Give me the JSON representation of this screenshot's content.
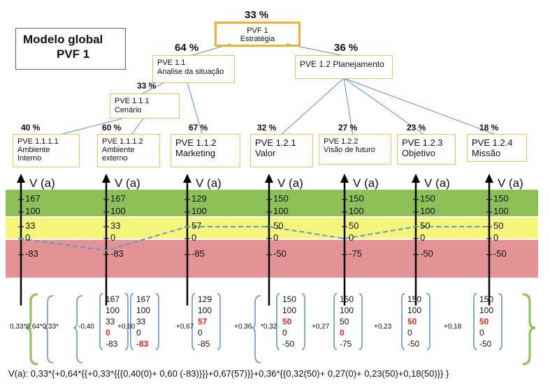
{
  "title": [
    "Modelo global",
    "PVF 1"
  ],
  "root": {
    "pct": "33 %",
    "lines": [
      "PVF 1",
      "Estratégia"
    ]
  },
  "level1": [
    {
      "pct": "64 %",
      "lines": [
        "PVE 1.1",
        "Analise da situação"
      ]
    },
    {
      "pct": "36 %",
      "lines": [
        "PVE 1.2 Planejamento"
      ]
    }
  ],
  "cenario": {
    "pct": "33 %",
    "lines": [
      "PVE 1.1.1",
      "Cenário"
    ]
  },
  "leaves": [
    {
      "pct": "40 %",
      "lines": [
        "PVE 1.1.1.1",
        "Ambiente",
        "Interno"
      ]
    },
    {
      "pct": "60 %",
      "lines": [
        "PVE 1.1.1.2",
        "Ambiente",
        "externo"
      ]
    },
    {
      "pct": "67 %",
      "lines": [
        "PVE 1.1.2",
        "Marketing"
      ]
    },
    {
      "pct": "32 %",
      "lines": [
        "PVE 1.2.1",
        "Valor"
      ]
    },
    {
      "pct": "27 %",
      "lines": [
        "PVE 1.2.2",
        "Visão de futuro"
      ]
    },
    {
      "pct": "23 %",
      "lines": [
        "PVE 1.2.3",
        "Objetivo"
      ]
    },
    {
      "pct": "18 %",
      "lines": [
        "PVE 1.2.4",
        "Missão"
      ]
    }
  ],
  "axis_label": "V (a)",
  "scales": [
    [
      "167",
      "100",
      "33",
      "0",
      "-83"
    ],
    [
      "167",
      "100",
      "33",
      "0",
      "-83"
    ],
    [
      "129",
      "100",
      "57",
      "0",
      "-85"
    ],
    [
      "150",
      "100",
      "50",
      "0",
      "-50"
    ],
    [
      "150",
      "100",
      "50",
      "0",
      "-75"
    ],
    [
      "150",
      "100",
      "50",
      "0",
      "-50"
    ],
    [
      "150",
      "100",
      "50",
      "0",
      "-50"
    ]
  ],
  "chosen_level": [
    "0",
    "-83",
    "57",
    "50",
    "0",
    "50",
    "50"
  ],
  "matrices": [
    {
      "values": [
        "167",
        "100",
        "33",
        "0",
        "-83"
      ],
      "red_index": 3
    },
    {
      "values": [
        "167",
        "100",
        "33",
        "0",
        "-83"
      ],
      "red_index": 4
    },
    {
      "values": [
        "129",
        "100",
        "57",
        "0",
        "-85"
      ],
      "red_index": 2
    },
    {
      "values": [
        "150",
        "100",
        "50",
        "0",
        "-50"
      ],
      "red_index": 2
    },
    {
      "values": [
        "150",
        "100",
        "50",
        "0",
        "-75"
      ],
      "red_index": 3
    },
    {
      "values": [
        "150",
        "100",
        "50",
        "0",
        "-50"
      ],
      "red_index": 2
    },
    {
      "values": [
        "150",
        "100",
        "50",
        "0",
        "-50"
      ],
      "red_index": 2
    }
  ],
  "coefficients": [
    "0,33*0,64*0,33*",
    "-0,40",
    "+0,60",
    "+0,67",
    "+0,36",
    "*0,32",
    "+0,27",
    "+0,23",
    "+0,18"
  ],
  "formula": "V(a): 0,33*{+0,64*{{+0,33*{{{0,40(0)+ 0,60 (-83)}}}+0,67(57)}}+0,36*{{0,32(50)+ 0,27(0)+ 0,23(50)+0,18(50)}} }",
  "colors": {
    "green": "#8dc158",
    "yellow": "#f5f57a",
    "red": "#e39393",
    "box_border": "#f0c060",
    "root_border": "#f0b030",
    "tree_line": "#5b8fc9",
    "brace": "#8dc158",
    "value_red": "#e8251f",
    "dashed": "#5b9bd5"
  }
}
